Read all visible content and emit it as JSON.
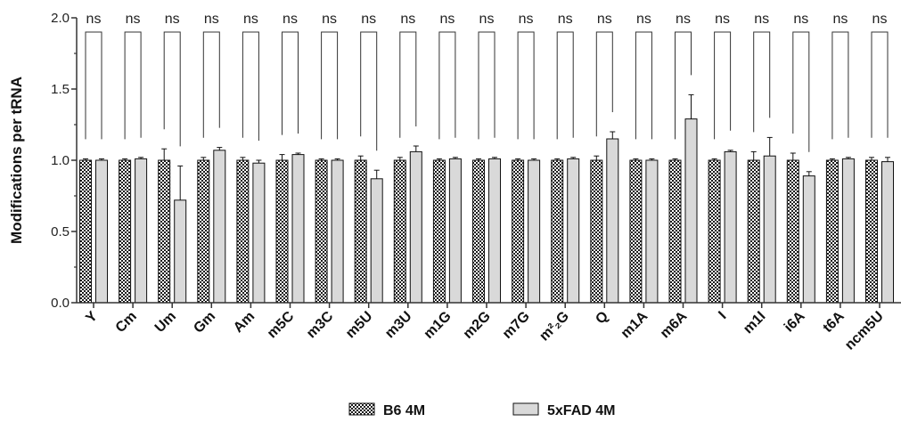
{
  "chart_data": {
    "type": "bar",
    "title": "",
    "ylabel": "Modifications per tRNA",
    "xlabel": "",
    "ylim": [
      0,
      2.0
    ],
    "yticks": [
      "0.0",
      "0.5",
      "1.0",
      "1.5",
      "2.0"
    ],
    "categories": [
      "Y",
      "Cm",
      "Um",
      "Gm",
      "Am",
      "m5C",
      "m3C",
      "m5U",
      "m3U",
      "m1G",
      "m2G",
      "m7G",
      "m²₂G",
      "Q",
      "m1A",
      "m6A",
      "I",
      "m1I",
      "i6A",
      "t6A",
      "ncm5U"
    ],
    "series": [
      {
        "name": "B6 4M",
        "pattern": "checkered",
        "values": [
          1.0,
          1.0,
          1.0,
          1.0,
          1.0,
          1.0,
          1.0,
          1.0,
          1.0,
          1.0,
          1.0,
          1.0,
          1.0,
          1.0,
          1.0,
          1.0,
          1.0,
          1.0,
          1.0,
          1.0,
          1.0
        ],
        "errors": [
          0.01,
          0.01,
          0.08,
          0.02,
          0.02,
          0.04,
          0.01,
          0.03,
          0.02,
          0.01,
          0.01,
          0.01,
          0.01,
          0.03,
          0.01,
          0.01,
          0.01,
          0.06,
          0.05,
          0.01,
          0.02
        ]
      },
      {
        "name": "5xFAD 4M",
        "color": "#d9d9d9",
        "values": [
          1.0,
          1.01,
          0.72,
          1.07,
          0.98,
          1.04,
          1.0,
          0.87,
          1.06,
          1.01,
          1.01,
          1.0,
          1.01,
          1.15,
          1.0,
          1.29,
          1.06,
          1.03,
          0.89,
          1.01,
          0.99
        ],
        "errors": [
          0.01,
          0.01,
          0.24,
          0.02,
          0.02,
          0.01,
          0.01,
          0.06,
          0.04,
          0.01,
          0.01,
          0.01,
          0.01,
          0.05,
          0.01,
          0.17,
          0.01,
          0.13,
          0.03,
          0.01,
          0.03
        ]
      }
    ],
    "annotations": [
      "ns",
      "ns",
      "ns",
      "ns",
      "ns",
      "ns",
      "ns",
      "ns",
      "ns",
      "ns",
      "ns",
      "ns",
      "ns",
      "ns",
      "ns",
      "ns",
      "ns",
      "ns",
      "ns",
      "ns",
      "ns"
    ],
    "bracket_y": 1.9,
    "grid": false,
    "legend_position": "bottom"
  }
}
